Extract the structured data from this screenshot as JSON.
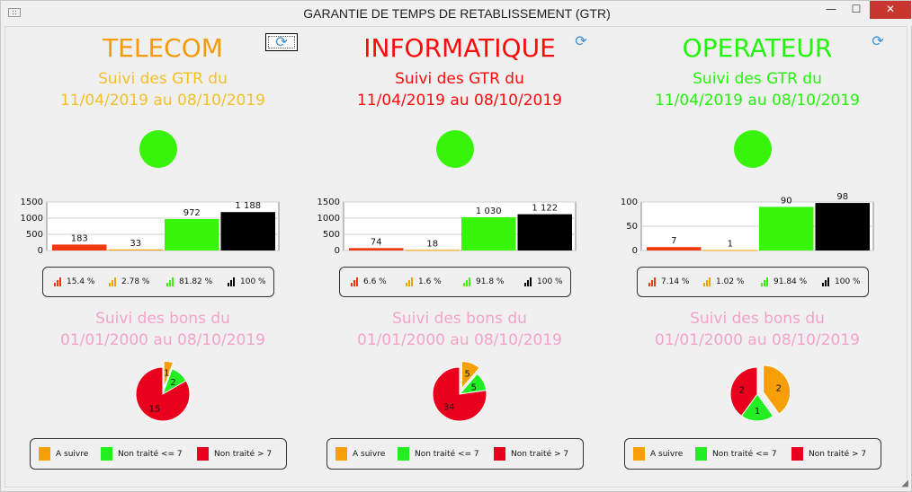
{
  "window": {
    "title": "GARANTIE DE TEMPS DE RETABLISSEMENT (GTR)",
    "icon_text": "∷",
    "minimize_glyph": "—",
    "maximize_glyph": "☐",
    "close_glyph": "✕"
  },
  "legend_pie": {
    "a_suivre": "A suivre",
    "non_traite_le": "Non traité <= 7",
    "non_traite_gt": "Non traité > 7"
  },
  "colors": {
    "red": "#ee3a0a",
    "orange": "#f5a000",
    "green": "#38f40a",
    "black": "#000000",
    "pink": "#f4a3c8",
    "pie_orange": "#f79f07",
    "pie_green": "#22ee22",
    "pie_red": "#e8001c"
  },
  "refresh_icon": "⟳",
  "panels": [
    {
      "title": "TELECOM",
      "title_color": "#f79a0a",
      "gtr_label": "Suivi des GTR du",
      "gtr_period": "11/04/2019 au 08/10/2019",
      "gtr_color": "#f2c02a",
      "status_led": "#38f40a",
      "legend_pct": [
        "15.4 %",
        "2.78 %",
        "81.82 %",
        "100 %"
      ],
      "bons_label": "Suivi des bons du",
      "bons_period": "01/01/2000 au 08/10/2019"
    },
    {
      "title": "INFORMATIQUE",
      "title_color": "#ff0a0a",
      "gtr_label": "Suivi des GTR du",
      "gtr_period": "11/04/2019 au 08/10/2019",
      "gtr_color": "#ff0a0a",
      "status_led": "#38f40a",
      "legend_pct": [
        "6.6 %",
        "1.6 %",
        "91.8 %",
        "100 %"
      ],
      "bons_label": "Suivi des bons du",
      "bons_period": "01/01/2000 au 08/10/2019"
    },
    {
      "title": "OPERATEUR",
      "title_color": "#22f40a",
      "gtr_label": "Suivi des GTR du",
      "gtr_period": "11/04/2019 au 08/10/2019",
      "gtr_color": "#22f40a",
      "status_led": "#38f40a",
      "legend_pct": [
        "7.14 %",
        "1.02 %",
        "91.84 %",
        "100 %"
      ],
      "bons_label": "Suivi des bons du",
      "bons_period": "01/01/2000 au 08/10/2019"
    }
  ],
  "chart_data": [
    {
      "type": "bar",
      "panel": "TELECOM",
      "values": [
        183,
        33,
        972,
        1188
      ],
      "labels": [
        "183",
        "33",
        "972",
        "1 188"
      ],
      "ylim": [
        0,
        1500
      ],
      "yticks": [
        "0",
        "500",
        "1000",
        "1500"
      ],
      "ytick_values": [
        0,
        500,
        1000,
        1500
      ],
      "colors": [
        "#ee3a0a",
        "#f5a000",
        "#38f40a",
        "#000000"
      ],
      "grid": true
    },
    {
      "type": "bar",
      "panel": "INFORMATIQUE",
      "values": [
        74,
        18,
        1030,
        1122
      ],
      "labels": [
        "74",
        "18",
        "1 030",
        "1 122"
      ],
      "ylim": [
        0,
        1500
      ],
      "yticks": [
        "0",
        "500",
        "1000",
        "1500"
      ],
      "ytick_values": [
        0,
        500,
        1000,
        1500
      ],
      "colors": [
        "#ee3a0a",
        "#f5a000",
        "#38f40a",
        "#000000"
      ],
      "grid": true
    },
    {
      "type": "bar",
      "panel": "OPERATEUR",
      "values": [
        7,
        1,
        90,
        98
      ],
      "labels": [
        "7",
        "1",
        "90",
        "98"
      ],
      "ylim": [
        0,
        100
      ],
      "yticks": [
        "0",
        "50",
        "100"
      ],
      "ytick_values": [
        0,
        50,
        100
      ],
      "colors": [
        "#ee3a0a",
        "#f5a000",
        "#38f40a",
        "#000000"
      ],
      "grid": true
    },
    {
      "type": "pie",
      "panel": "TELECOM",
      "slices": [
        {
          "label": "A suivre",
          "value": 1
        },
        {
          "label": "Non traité <= 7",
          "value": 2
        },
        {
          "label": "Non traité > 7",
          "value": 15
        }
      ],
      "exploded": "A suivre"
    },
    {
      "type": "pie",
      "panel": "INFORMATIQUE",
      "slices": [
        {
          "label": "A suivre",
          "value": 5
        },
        {
          "label": "Non traité <= 7",
          "value": 5
        },
        {
          "label": "Non traité > 7",
          "value": 34
        }
      ],
      "exploded": "A suivre"
    },
    {
      "type": "pie",
      "panel": "OPERATEUR",
      "slices": [
        {
          "label": "A suivre",
          "value": 2
        },
        {
          "label": "Non traité <= 7",
          "value": 1
        },
        {
          "label": "Non traité > 7",
          "value": 2
        }
      ],
      "exploded": "A suivre"
    }
  ]
}
